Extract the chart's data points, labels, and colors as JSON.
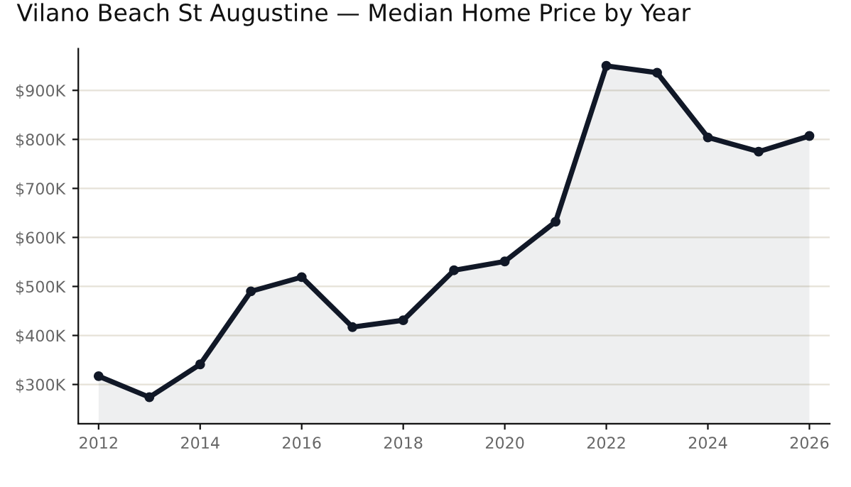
{
  "chart_data": {
    "type": "area",
    "title": "Vilano Beach St Augustine — Median Home Price by Year",
    "x": [
      2012,
      2013,
      2014,
      2015,
      2016,
      2017,
      2018,
      2019,
      2020,
      2021,
      2022,
      2023,
      2024,
      2025,
      2026
    ],
    "series": [
      {
        "color": "#111827",
        "values": [
          317000,
          274000,
          341000,
          490000,
          519000,
          417000,
          431000,
          533000,
          551000,
          632000,
          950000,
          936000,
          804000,
          775000,
          807000
        ]
      }
    ],
    "xlim": [
      2011.6,
      2026.4
    ],
    "xticks": [
      2012,
      2014,
      2016,
      2018,
      2020,
      2022,
      2024,
      2026
    ],
    "ylim": [
      220000,
      985000
    ],
    "yticks": [
      {
        "value": 300000,
        "label": "$300K"
      },
      {
        "value": 400000,
        "label": "$400K"
      },
      {
        "value": 500000,
        "label": "$500K"
      },
      {
        "value": 600000,
        "label": "$600K"
      },
      {
        "value": 700000,
        "label": "$700K"
      },
      {
        "value": 800000,
        "label": "$800K"
      },
      {
        "value": 900000,
        "label": "$900K"
      }
    ],
    "grid": "y",
    "marker": "circle",
    "line_style": "solid"
  }
}
